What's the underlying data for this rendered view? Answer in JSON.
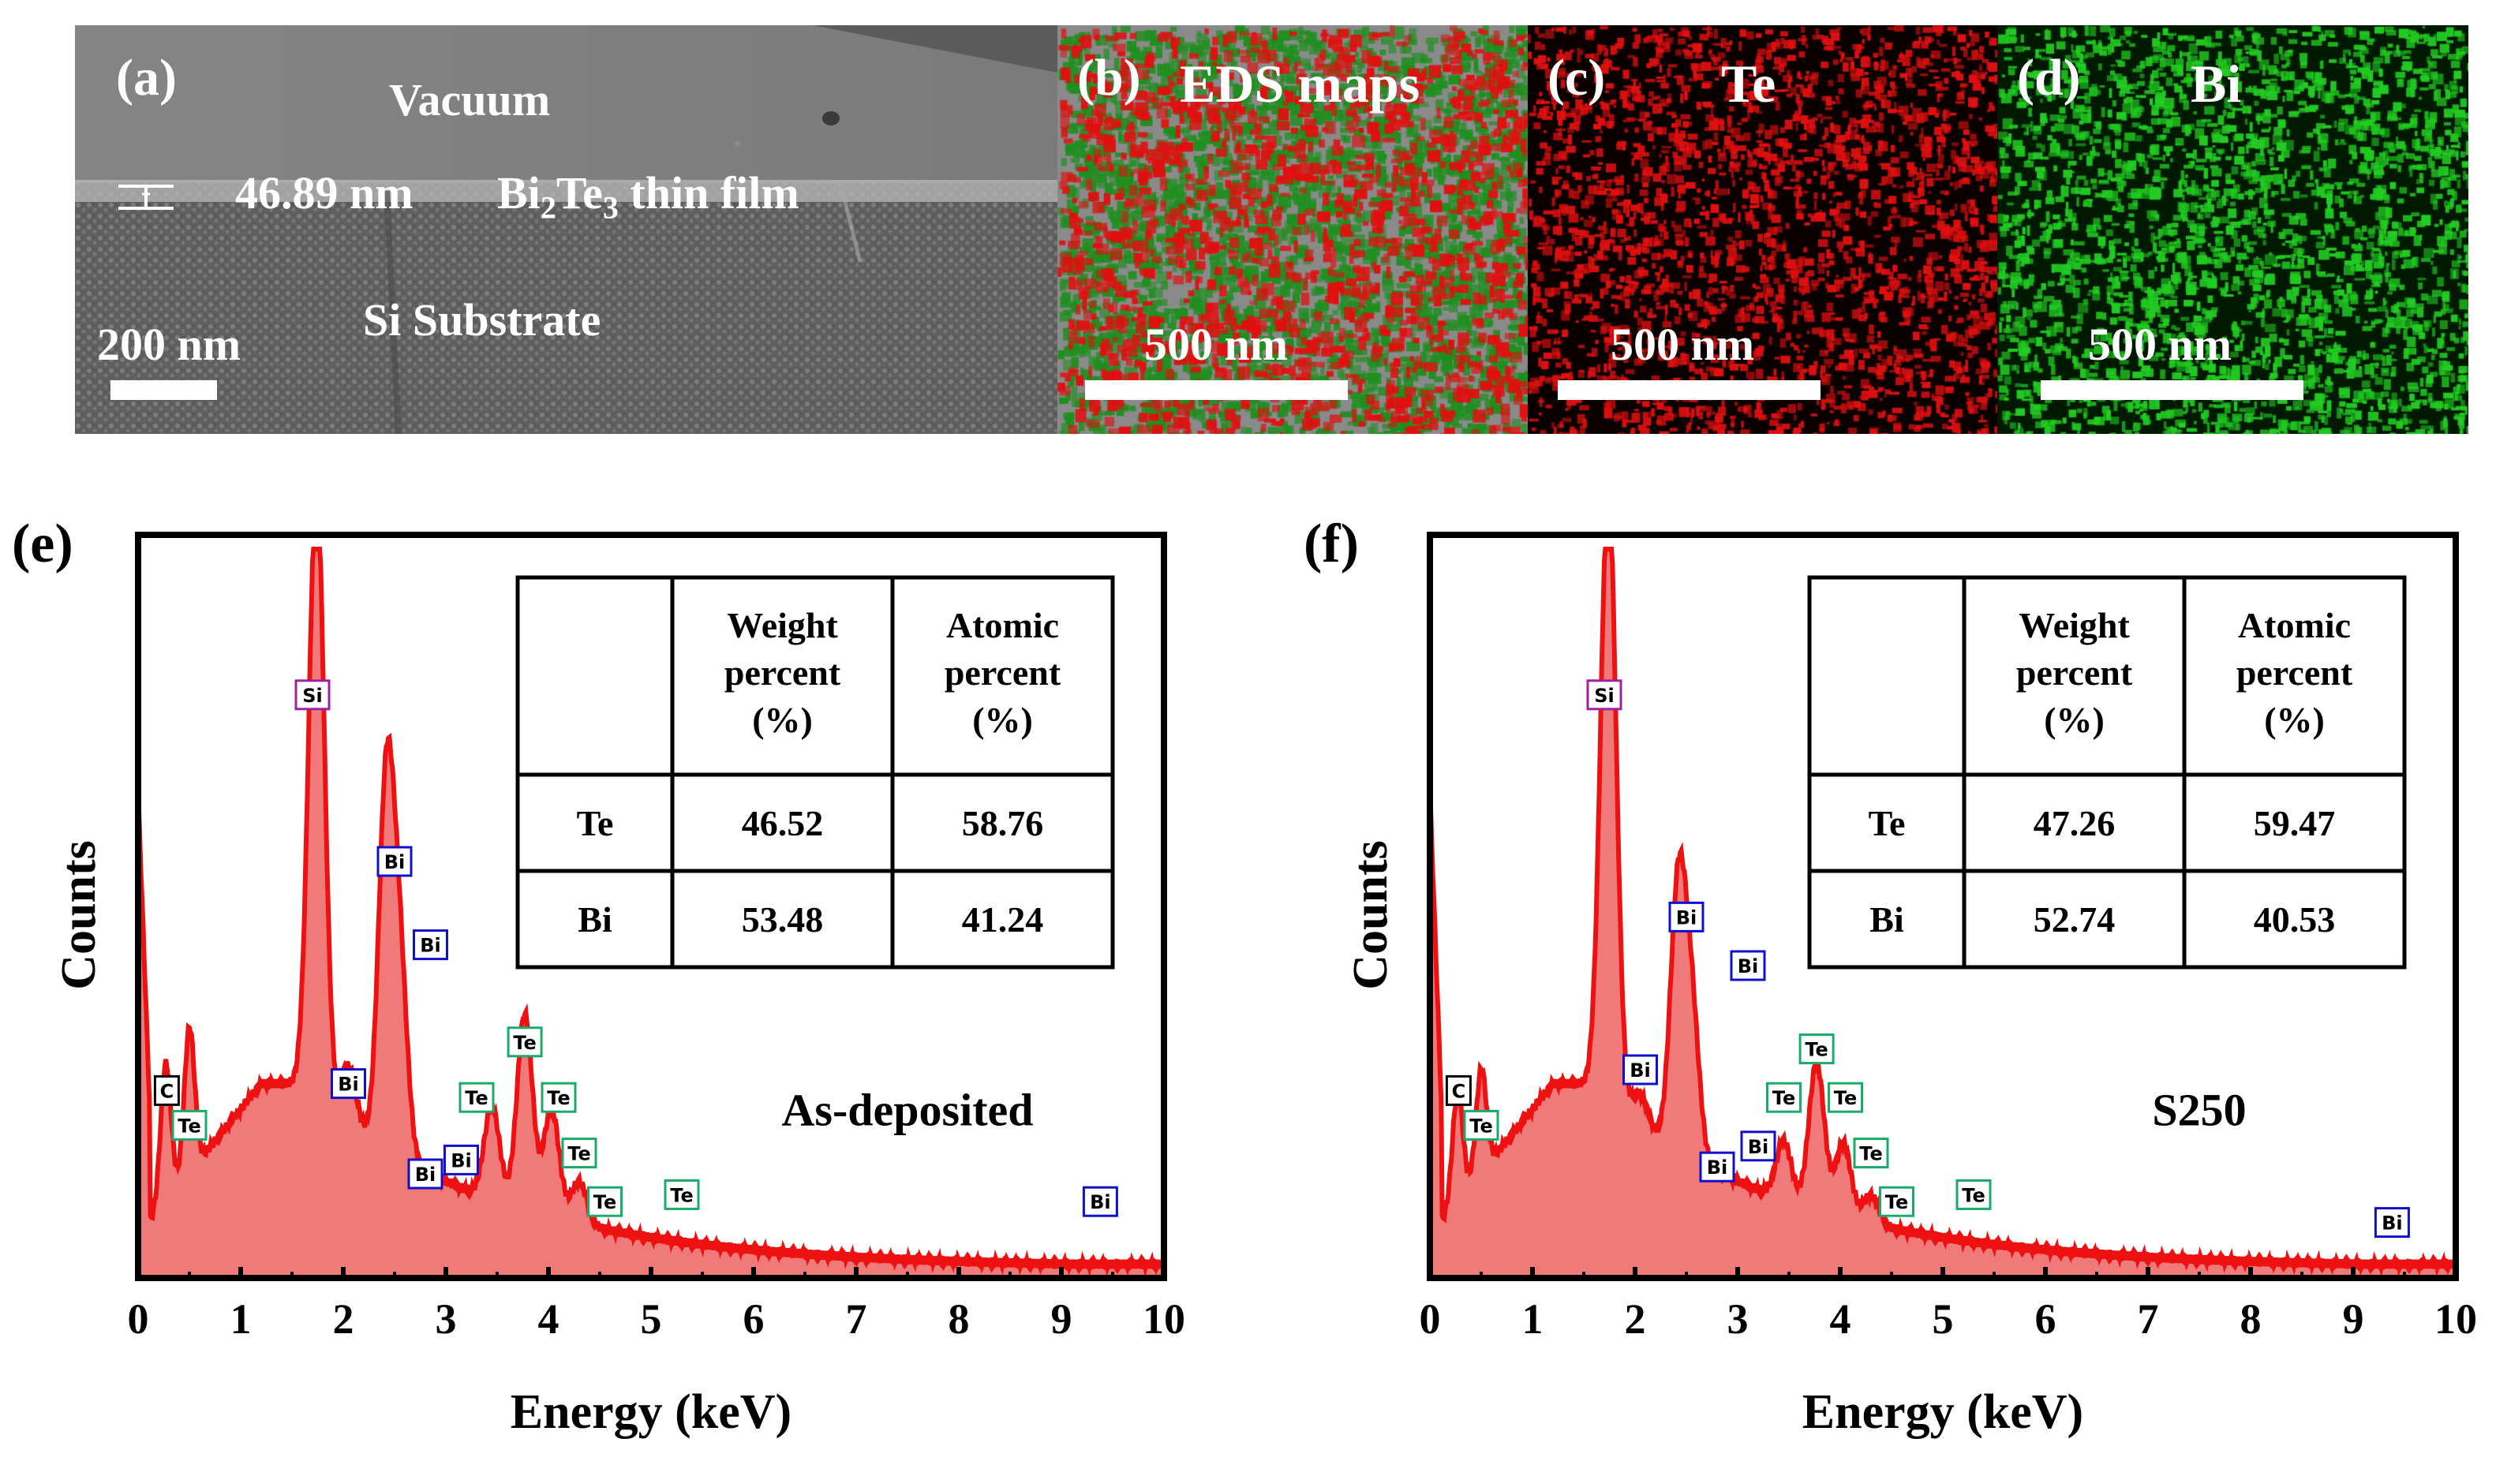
{
  "panels": {
    "a": {
      "label": "(a)",
      "vacuum": "Vacuum",
      "thickness": "46.89 nm",
      "film": "Bi2Te3 thin film",
      "film_parts": [
        "Bi",
        "2",
        "Te",
        "3",
        " thin film"
      ],
      "substrate": "Si Substrate",
      "scale": "200 nm"
    },
    "b": {
      "label": "(b)",
      "title": "EDS maps",
      "scale": "500 nm"
    },
    "c": {
      "label": "(c)",
      "title": "Te",
      "scale": "500 nm"
    },
    "d": {
      "label": "(d)",
      "title": "Bi",
      "scale": "500 nm"
    }
  },
  "colors": {
    "sem_bg": "#6d6d6d",
    "spectrum": "#ee1111",
    "spectrum_fill": "#f07a7a",
    "te_box": "#1aaa6a",
    "bi_box": "#1010cc",
    "si_box": "#a020a0",
    "c_box": "#000000",
    "map_red": "#e01010",
    "map_green": "#22cc22"
  },
  "chart_data": [
    {
      "type": "line",
      "panel_label": "(e)",
      "sample": "As-deposited",
      "xlabel": "Energy (keV)",
      "ylabel": "Counts",
      "xlim": [
        0,
        10
      ],
      "ylim": [
        0,
        100
      ],
      "xticks": [
        "0",
        "1",
        "2",
        "3",
        "4",
        "5",
        "6",
        "7",
        "8",
        "9",
        "10"
      ],
      "peaks": [
        {
          "keV": 0.27,
          "counts": 20
        },
        {
          "keV": 0.5,
          "counts": 21
        },
        {
          "keV": 1.74,
          "counts": 100
        },
        {
          "keV": 2.05,
          "counts": 18
        },
        {
          "keV": 2.42,
          "counts": 60
        },
        {
          "keV": 2.55,
          "counts": 34
        },
        {
          "keV": 3.45,
          "counts": 18
        },
        {
          "keV": 3.77,
          "counts": 32
        },
        {
          "keV": 4.03,
          "counts": 19
        },
        {
          "keV": 4.3,
          "counts": 9
        }
      ],
      "peak_labels": [
        {
          "text": "C",
          "element": "c",
          "keV": 0.28,
          "counts": 27
        },
        {
          "text": "Te",
          "element": "te",
          "keV": 0.5,
          "counts": 22
        },
        {
          "text": "Si",
          "element": "si",
          "keV": 1.7,
          "counts": 84
        },
        {
          "text": "Bi",
          "element": "bi",
          "keV": 2.5,
          "counts": 60
        },
        {
          "text": "Bi",
          "element": "bi",
          "keV": 2.85,
          "counts": 48
        },
        {
          "text": "Bi",
          "element": "bi",
          "keV": 2.05,
          "counts": 28
        },
        {
          "text": "Bi",
          "element": "bi",
          "keV": 2.8,
          "counts": 15
        },
        {
          "text": "Bi",
          "element": "bi",
          "keV": 3.15,
          "counts": 17
        },
        {
          "text": "Te",
          "element": "te",
          "keV": 3.3,
          "counts": 26
        },
        {
          "text": "Te",
          "element": "te",
          "keV": 3.77,
          "counts": 34
        },
        {
          "text": "Te",
          "element": "te",
          "keV": 4.1,
          "counts": 26
        },
        {
          "text": "Te",
          "element": "te",
          "keV": 4.3,
          "counts": 18
        },
        {
          "text": "Te",
          "element": "te",
          "keV": 4.55,
          "counts": 11
        },
        {
          "text": "Te",
          "element": "te",
          "keV": 5.3,
          "counts": 12
        },
        {
          "text": "Bi",
          "element": "bi",
          "keV": 9.38,
          "counts": 11
        }
      ],
      "table": {
        "headers": [
          "",
          "Weight percent (%)",
          "Atomic percent (%)"
        ],
        "header_lines": [
          [
            "Weight",
            "percent",
            "(%)"
          ],
          [
            "Atomic",
            "percent",
            "(%)"
          ]
        ],
        "rows": [
          {
            "element": "Te",
            "weight": "46.52",
            "atomic": "58.76"
          },
          {
            "element": "Bi",
            "weight": "53.48",
            "atomic": "41.24"
          }
        ]
      }
    },
    {
      "type": "line",
      "panel_label": "(f)",
      "sample": "S250",
      "xlabel": "Energy (keV)",
      "ylabel": "Counts",
      "xlim": [
        0,
        10
      ],
      "ylim": [
        0,
        100
      ],
      "xticks": [
        "0",
        "1",
        "2",
        "3",
        "4",
        "5",
        "6",
        "7",
        "8",
        "9",
        "10"
      ],
      "peaks": [
        {
          "keV": 0.27,
          "counts": 16
        },
        {
          "keV": 0.5,
          "counts": 15
        },
        {
          "keV": 1.74,
          "counts": 100
        },
        {
          "keV": 2.05,
          "counts": 14
        },
        {
          "keV": 2.42,
          "counts": 45
        },
        {
          "keV": 2.55,
          "counts": 28
        },
        {
          "keV": 3.45,
          "counts": 13
        },
        {
          "keV": 3.77,
          "counts": 25
        },
        {
          "keV": 4.03,
          "counts": 14
        },
        {
          "keV": 4.3,
          "counts": 7
        }
      ],
      "peak_labels": [
        {
          "text": "C",
          "element": "c",
          "keV": 0.28,
          "counts": 27
        },
        {
          "text": "Te",
          "element": "te",
          "keV": 0.5,
          "counts": 22
        },
        {
          "text": "Si",
          "element": "si",
          "keV": 1.7,
          "counts": 84
        },
        {
          "text": "Bi",
          "element": "bi",
          "keV": 2.5,
          "counts": 52
        },
        {
          "text": "Bi",
          "element": "bi",
          "keV": 3.1,
          "counts": 45
        },
        {
          "text": "Bi",
          "element": "bi",
          "keV": 2.05,
          "counts": 30
        },
        {
          "text": "Bi",
          "element": "bi",
          "keV": 2.8,
          "counts": 16
        },
        {
          "text": "Bi",
          "element": "bi",
          "keV": 3.2,
          "counts": 19
        },
        {
          "text": "Te",
          "element": "te",
          "keV": 3.45,
          "counts": 26
        },
        {
          "text": "Te",
          "element": "te",
          "keV": 3.77,
          "counts": 33
        },
        {
          "text": "Te",
          "element": "te",
          "keV": 4.05,
          "counts": 26
        },
        {
          "text": "Te",
          "element": "te",
          "keV": 4.3,
          "counts": 18
        },
        {
          "text": "Te",
          "element": "te",
          "keV": 4.55,
          "counts": 11
        },
        {
          "text": "Te",
          "element": "te",
          "keV": 5.3,
          "counts": 12
        },
        {
          "text": "Bi",
          "element": "bi",
          "keV": 9.38,
          "counts": 8
        }
      ],
      "table": {
        "headers": [
          "",
          "Weight percent (%)",
          "Atomic percent (%)"
        ],
        "header_lines": [
          [
            "Weight",
            "percent",
            "(%)"
          ],
          [
            "Atomic",
            "percent",
            "(%)"
          ]
        ],
        "rows": [
          {
            "element": "Te",
            "weight": "47.26",
            "atomic": "59.47"
          },
          {
            "element": "Bi",
            "weight": "52.74",
            "atomic": "40.53"
          }
        ]
      }
    }
  ]
}
